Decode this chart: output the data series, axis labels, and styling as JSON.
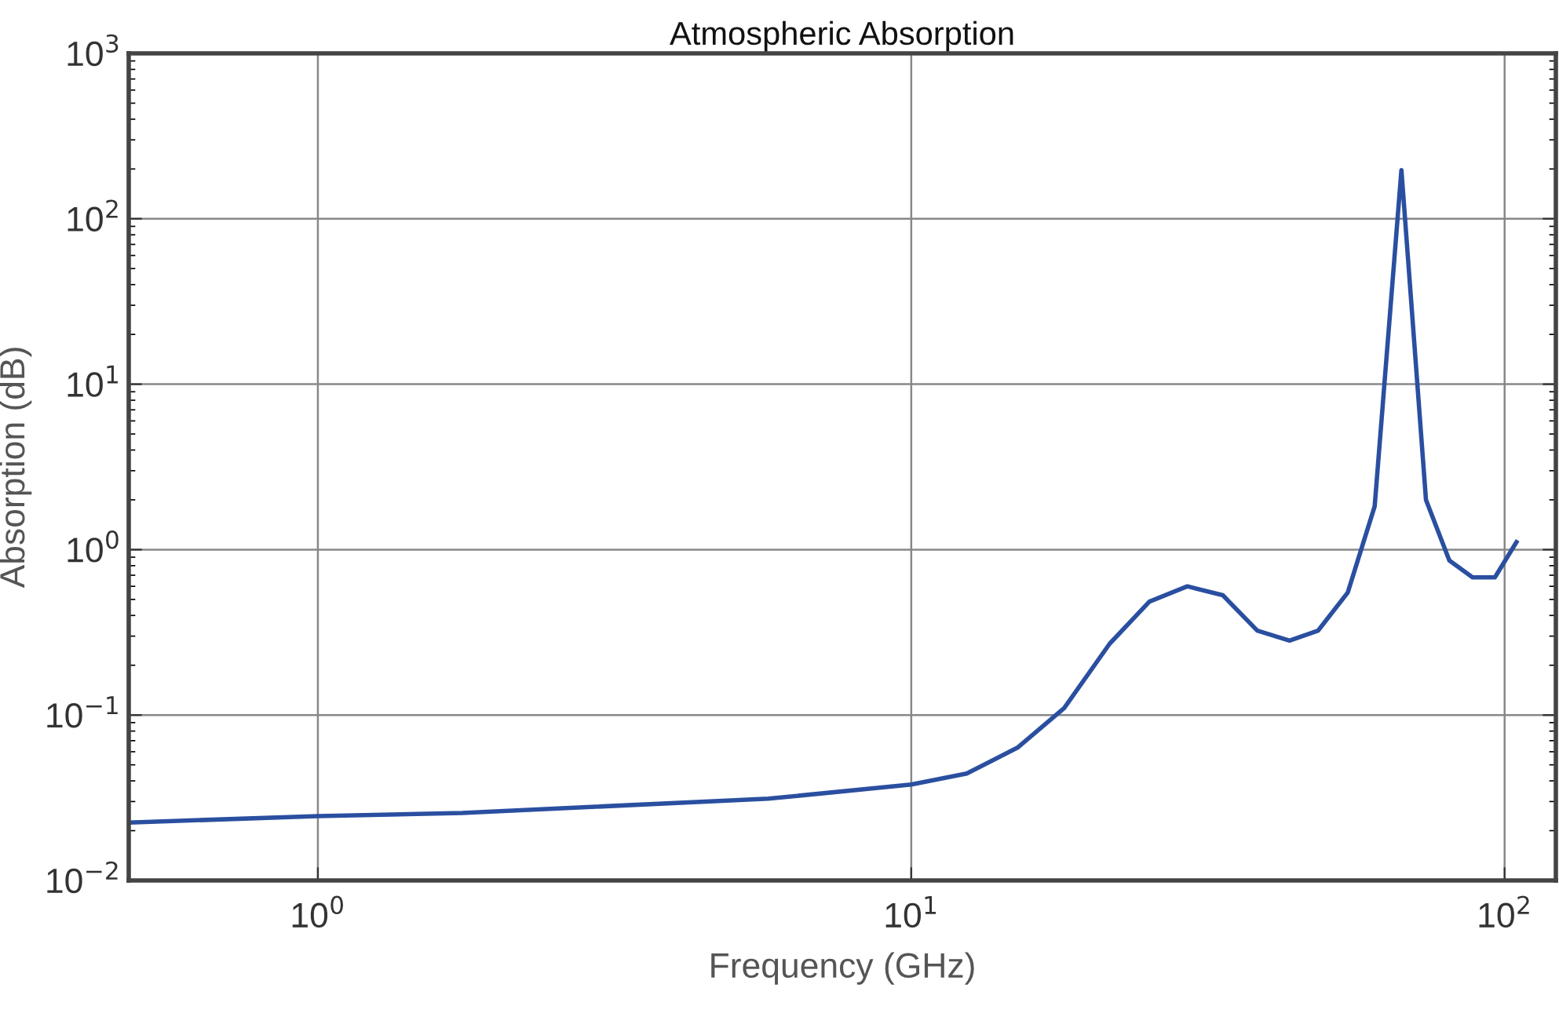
{
  "chart_data": {
    "type": "line",
    "title": "Atmospheric Absorption",
    "xlabel": "Frequency (GHz)",
    "ylabel": "Absorption (dB)",
    "log": "xy",
    "grid": true,
    "marker": "none",
    "line_style": "solid",
    "xlim": [
      0.48,
      122
    ],
    "ylim": [
      0.01,
      1000
    ],
    "xticks": [
      {
        "value": 1,
        "label": "10$^{0}$"
      },
      {
        "value": 10,
        "label": "10$^{1}$"
      },
      {
        "value": 100,
        "label": "10$^{2}$"
      }
    ],
    "yticks": [
      {
        "value": 0.01,
        "label": "10$^{−2}$"
      },
      {
        "value": 0.1,
        "label": "10$^{−1}$"
      },
      {
        "value": 1,
        "label": "10$^{0}$"
      },
      {
        "value": 10,
        "label": "10$^{1}$"
      },
      {
        "value": 100,
        "label": "10$^{2}$"
      },
      {
        "value": 1000,
        "label": "10$^{3}$"
      }
    ],
    "series": [
      {
        "color": "#2a4fa0",
        "x": [
          0.48,
          1,
          1.75,
          5.74,
          10,
          12.4,
          15.1,
          18.1,
          21.6,
          25.2,
          29.2,
          33.5,
          38.3,
          43.4,
          48.5,
          54.4,
          60.4,
          67.0,
          73.7,
          80.7,
          88.3,
          96.3,
          104.7
        ],
        "values": [
          0.0224,
          0.0245,
          0.0256,
          0.0312,
          0.038,
          0.0443,
          0.0635,
          0.11,
          0.27,
          0.485,
          0.6,
          0.53,
          0.324,
          0.282,
          0.324,
          0.55,
          1.83,
          197,
          2.0,
          0.86,
          0.68,
          0.68,
          1.11
        ]
      }
    ]
  }
}
